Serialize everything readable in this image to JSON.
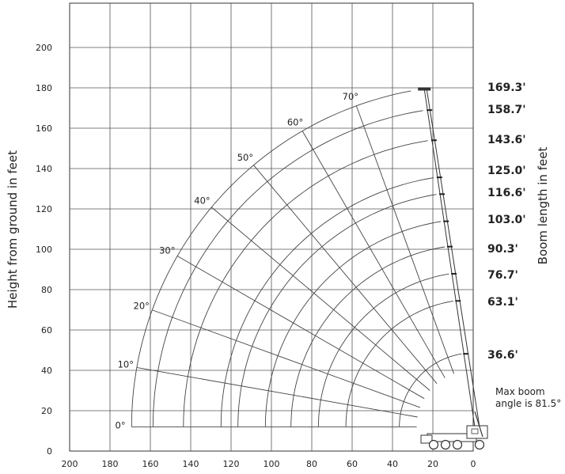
{
  "labels": {
    "y_axis": "Height from ground in feet",
    "boom_axis": "Boom length in feet",
    "max_boom_line1": "Max boom",
    "max_boom_line2": "angle is 81.5°"
  },
  "x_ticks": [
    200,
    180,
    160,
    140,
    120,
    100,
    80,
    60,
    40,
    20,
    0
  ],
  "y_ticks": [
    0,
    20,
    40,
    60,
    80,
    100,
    120,
    140,
    160,
    180,
    200
  ],
  "angles": [
    {
      "deg": 0,
      "label": "0°"
    },
    {
      "deg": 10,
      "label": "10°"
    },
    {
      "deg": 20,
      "label": "20°"
    },
    {
      "deg": 30,
      "label": "30°"
    },
    {
      "deg": 40,
      "label": "40°"
    },
    {
      "deg": 50,
      "label": "50°"
    },
    {
      "deg": 60,
      "label": "60°"
    },
    {
      "deg": 70,
      "label": "70°"
    }
  ],
  "boom_lengths": [
    {
      "value": 36.6,
      "label": "36.6'"
    },
    {
      "value": 63.1,
      "label": "63.1'"
    },
    {
      "value": 76.7,
      "label": "76.7'"
    },
    {
      "value": 90.3,
      "label": "90.3'"
    },
    {
      "value": 103.0,
      "label": "103.0'"
    },
    {
      "value": 116.6,
      "label": "116.6'"
    },
    {
      "value": 125.0,
      "label": "125.0'"
    },
    {
      "value": 143.6,
      "label": "143.6'"
    },
    {
      "value": 158.7,
      "label": "158.7'"
    },
    {
      "value": 169.3,
      "label": "169.3'"
    }
  ],
  "max_boom_angle_deg": 81.5,
  "chart_data": {
    "type": "line",
    "xlabel": "",
    "ylabel": "Height from ground in feet",
    "y2label": "Boom length in feet",
    "xlim": [
      200,
      0
    ],
    "ylim": [
      0,
      210
    ],
    "grid": true
  }
}
